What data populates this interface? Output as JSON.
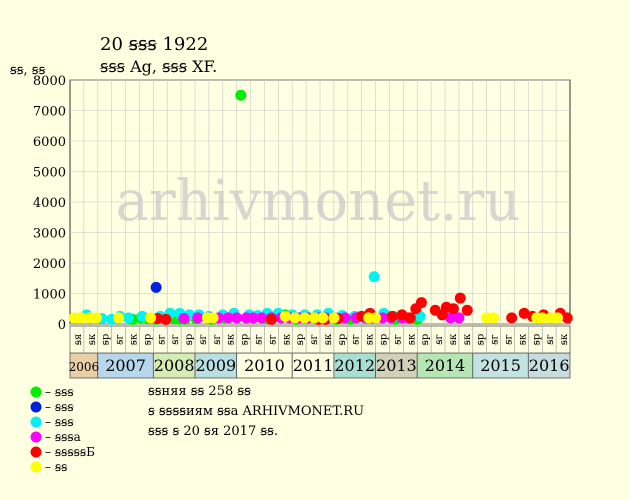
{
  "chart_data": {
    "type": "scatter",
    "title": "20 ꞩꞩꞩ 1922",
    "subtitle": "ꞩꞩꞩ Ag, ꞩꞩꞩ XF.",
    "ylabel": "ꞩꞩ, ꞩꞩ",
    "ylim": [
      0,
      8000
    ],
    "yticks": [
      "0",
      "1000",
      "2000",
      "3000",
      "4000",
      "5000",
      "6000",
      "7000",
      "8000"
    ],
    "grid": true,
    "watermark": "arhivmonet.ru",
    "years": [
      {
        "label": "2006",
        "from": 0,
        "to": 2,
        "color": "#e8cfa6"
      },
      {
        "label": "2007",
        "from": 2,
        "to": 6,
        "color": "#b8d7ec"
      },
      {
        "label": "2008",
        "from": 6,
        "to": 9,
        "color": "#d7ecb4"
      },
      {
        "label": "2009",
        "from": 9,
        "to": 12,
        "color": "#b9dfe3"
      },
      {
        "label": "2010",
        "from": 12,
        "to": 16,
        "color": "#ffffe2"
      },
      {
        "label": "2011",
        "from": 16,
        "to": 19,
        "color": "#ffffe2"
      },
      {
        "label": "2012",
        "from": 19,
        "to": 22,
        "color": "#a8dfd3"
      },
      {
        "label": "2013",
        "from": 22,
        "to": 25,
        "color": "#d2d0b8"
      },
      {
        "label": "2014",
        "from": 25,
        "to": 29,
        "color": "#b6e5b6"
      },
      {
        "label": "2015",
        "from": 29,
        "to": 33,
        "color": "#c3e2e2"
      },
      {
        "label": "2016",
        "from": 33,
        "to": 36,
        "color": "#c7dcde"
      }
    ],
    "months": [
      "ꞩя",
      "ꞩк",
      "ꞩр",
      "ꞩг",
      "ꞩк",
      "ꞩр",
      "ꞩг",
      "ꞩг",
      "ꞩр",
      "ꞩг",
      "ꞩг",
      "ꞩк",
      "ꞩр",
      "ꞩг",
      "ꞩг",
      "ꞩк",
      "ꞩр",
      "ꞩг",
      "ꞩк",
      "ꞩр",
      "ꞩг",
      "ꞩк",
      "ꞩр",
      "ꞩг",
      "ꞩк",
      "ꞩр",
      "ꞩг",
      "ꞩк",
      "ꞩк",
      "ꞩр",
      "ꞩг",
      "ꞩг",
      "ꞩк",
      "ꞩр",
      "ꞩг",
      "ꞩк"
    ],
    "series": [
      {
        "name": "– ꞩꞩꞩ",
        "color": "#00ee00",
        "points": [
          [
            4.5,
            150
          ],
          [
            5.1,
            200
          ],
          [
            5.6,
            180
          ],
          [
            6.2,
            150
          ],
          [
            6.9,
            180
          ],
          [
            7.5,
            180
          ],
          [
            7.9,
            150
          ],
          [
            8.3,
            150
          ],
          [
            9.1,
            160
          ],
          [
            10.2,
            150
          ],
          [
            11.1,
            200
          ],
          [
            11.7,
            250
          ],
          [
            12.3,
            7500
          ],
          [
            13.2,
            200
          ],
          [
            14.1,
            180
          ],
          [
            14.8,
            250
          ],
          [
            15.5,
            300
          ],
          [
            16.3,
            150
          ],
          [
            17.2,
            200
          ],
          [
            18.2,
            200
          ],
          [
            19.2,
            150
          ],
          [
            20.2,
            150
          ],
          [
            23.4,
            150
          ],
          [
            24.2,
            200
          ],
          [
            25.0,
            150
          ]
        ]
      },
      {
        "name": "– ꞩꞩꞩ",
        "color": "#0022dd",
        "points": [
          [
            6.2,
            1200
          ]
        ]
      },
      {
        "name": "– ꞩꞩꞩ",
        "color": "#00f2f2",
        "points": [
          [
            1.2,
            300
          ],
          [
            2.3,
            180
          ],
          [
            3.0,
            150
          ],
          [
            3.6,
            250
          ],
          [
            4.2,
            200
          ],
          [
            5.2,
            250
          ],
          [
            6.5,
            250
          ],
          [
            7.2,
            350
          ],
          [
            7.9,
            350
          ],
          [
            8.6,
            300
          ],
          [
            9.3,
            300
          ],
          [
            10.0,
            250
          ],
          [
            11.0,
            300
          ],
          [
            11.8,
            350
          ],
          [
            12.9,
            300
          ],
          [
            13.5,
            280
          ],
          [
            14.2,
            350
          ],
          [
            15.0,
            350
          ],
          [
            16.0,
            300
          ],
          [
            16.9,
            300
          ],
          [
            17.8,
            300
          ],
          [
            18.6,
            350
          ],
          [
            19.6,
            280
          ],
          [
            20.5,
            250
          ],
          [
            21.2,
            200
          ],
          [
            21.9,
            1550
          ],
          [
            22.6,
            350
          ],
          [
            23.3,
            250
          ],
          [
            24.1,
            200
          ],
          [
            25.2,
            250
          ]
        ]
      },
      {
        "name": "– ꞩꞩꞩа",
        "color": "#ff00ff",
        "points": [
          [
            8.2,
            180
          ],
          [
            9.2,
            200
          ],
          [
            10.1,
            200
          ],
          [
            10.7,
            200
          ],
          [
            11.4,
            200
          ],
          [
            12.0,
            200
          ],
          [
            12.7,
            200
          ],
          [
            13.2,
            200
          ],
          [
            13.8,
            200
          ],
          [
            14.5,
            200
          ],
          [
            15.2,
            200
          ],
          [
            15.8,
            200
          ],
          [
            16.5,
            200
          ],
          [
            17.1,
            200
          ],
          [
            17.9,
            200
          ],
          [
            18.4,
            200
          ],
          [
            19.1,
            200
          ],
          [
            19.8,
            200
          ],
          [
            20.6,
            200
          ],
          [
            21.3,
            200
          ],
          [
            21.8,
            200
          ],
          [
            22.5,
            200
          ],
          [
            23.1,
            200
          ],
          [
            23.9,
            200
          ],
          [
            24.4,
            200
          ],
          [
            27.4,
            200
          ],
          [
            28.0,
            200
          ]
        ]
      },
      {
        "name": "– ꞩꞩꞩꞩꞩБ",
        "color": "#ff0000",
        "points": [
          [
            6.3,
            180
          ],
          [
            6.9,
            150
          ],
          [
            14.5,
            150
          ],
          [
            17.9,
            150
          ],
          [
            18.4,
            150
          ],
          [
            19.3,
            180
          ],
          [
            21.0,
            250
          ],
          [
            21.6,
            350
          ],
          [
            23.2,
            250
          ],
          [
            23.9,
            300
          ],
          [
            24.5,
            200
          ],
          [
            24.9,
            500
          ],
          [
            25.3,
            700
          ],
          [
            26.3,
            450
          ],
          [
            26.8,
            300
          ],
          [
            27.1,
            550
          ],
          [
            27.6,
            500
          ],
          [
            28.1,
            850
          ],
          [
            28.6,
            450
          ],
          [
            31.8,
            200
          ],
          [
            32.7,
            350
          ],
          [
            33.3,
            250
          ],
          [
            34.1,
            300
          ],
          [
            35.3,
            350
          ],
          [
            35.8,
            200
          ]
        ]
      },
      {
        "name": "– ꞩꞩ",
        "color": "#ffff00",
        "points": [
          [
            0.3,
            200
          ],
          [
            0.8,
            200
          ],
          [
            1.4,
            200
          ],
          [
            1.9,
            200
          ],
          [
            3.5,
            200
          ],
          [
            5.8,
            200
          ],
          [
            9.9,
            200
          ],
          [
            10.3,
            200
          ],
          [
            15.5,
            250
          ],
          [
            16.2,
            200
          ],
          [
            16.9,
            200
          ],
          [
            17.6,
            200
          ],
          [
            18.2,
            200
          ],
          [
            19.0,
            200
          ],
          [
            21.5,
            200
          ],
          [
            22.0,
            200
          ],
          [
            30.0,
            200
          ],
          [
            30.5,
            200
          ],
          [
            33.6,
            200
          ],
          [
            34.0,
            200
          ],
          [
            34.6,
            200
          ],
          [
            35.1,
            200
          ]
        ]
      }
    ]
  },
  "info": {
    "line1": "ꞩꞩняя ꞩꞩ 258 ꞩꞩ",
    "line2": "ꞩ ꞩꞩꞩꞩиям ꞩꞩа ARHIVMONET.RU",
    "line3": "ꞩꞩꞩ ꞩ 20 ꞩя 2017 ꞩꞩ."
  }
}
